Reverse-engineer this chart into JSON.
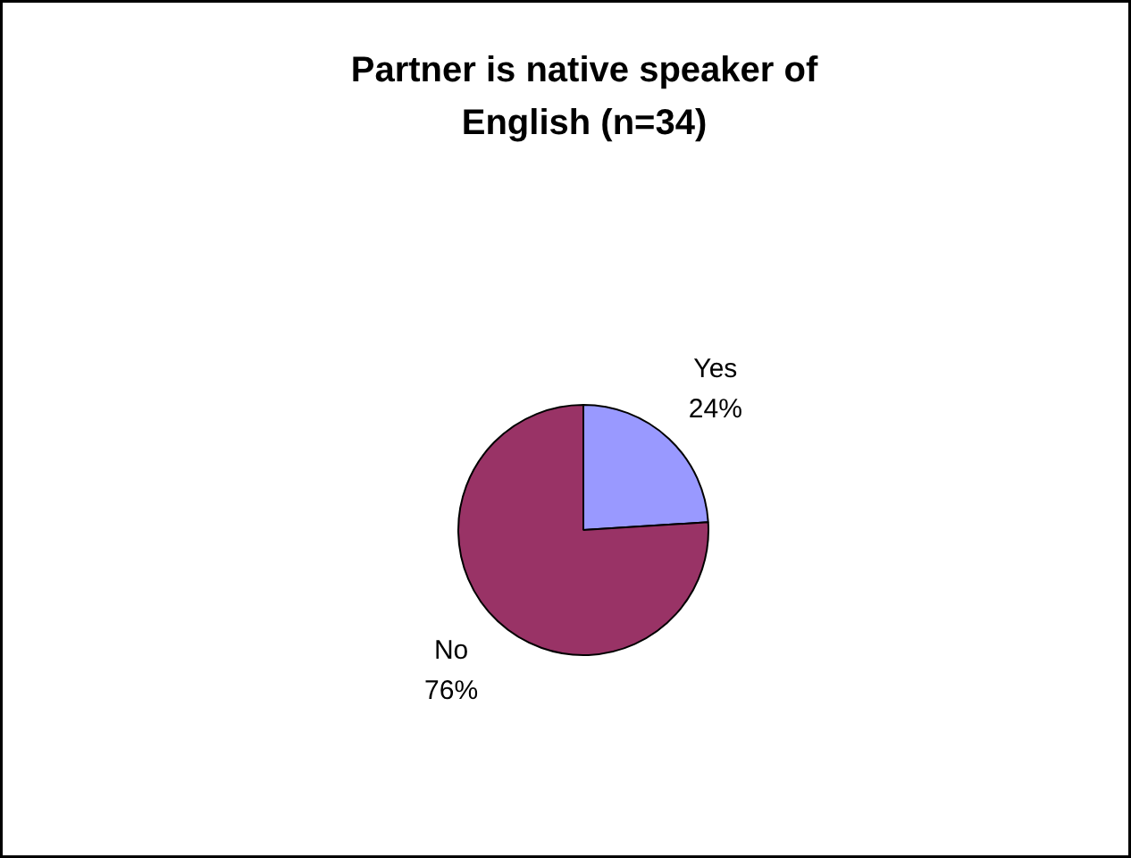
{
  "chart_data": {
    "type": "pie",
    "title": "Partner is native speaker of\nEnglish (n=34)",
    "categories": [
      "Yes",
      "No"
    ],
    "values": [
      24,
      76
    ],
    "colors": [
      "#9999ff",
      "#993366"
    ],
    "value_labels": [
      "24%",
      "76%"
    ]
  }
}
